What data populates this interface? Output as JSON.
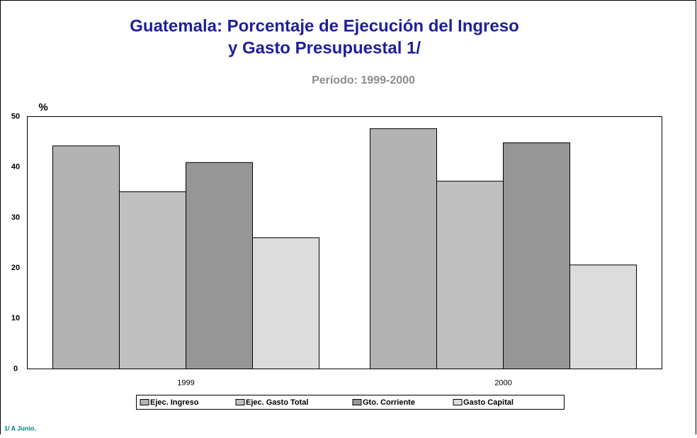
{
  "chart_data": {
    "type": "bar",
    "title": [
      "Guatemala: Porcentaje de Ejecución del Ingreso",
      "y Gasto Presupuestal 1/"
    ],
    "subtitle": "Período: 1999-2000",
    "y_label": "%",
    "footnote": "1/ A Junio.",
    "categories": [
      "1999",
      "2000"
    ],
    "series": [
      {
        "name": "Ejec. Ingreso",
        "color": "#b3b3b3",
        "values": [
          44.2,
          47.6
        ]
      },
      {
        "name": "Ejec. Gasto Total",
        "color": "#c0c0c0",
        "values": [
          35.1,
          37.2
        ]
      },
      {
        "name": "Gto. Corriente",
        "color": "#969696",
        "values": [
          40.9,
          44.8
        ]
      },
      {
        "name": "Gasto Capital",
        "color": "#dcdcdc",
        "values": [
          26.0,
          20.6
        ]
      }
    ],
    "ylim": [
      0,
      50
    ],
    "yticks": [
      0,
      10,
      20,
      30,
      40,
      50
    ],
    "legend": "bottom",
    "grid": false
  }
}
